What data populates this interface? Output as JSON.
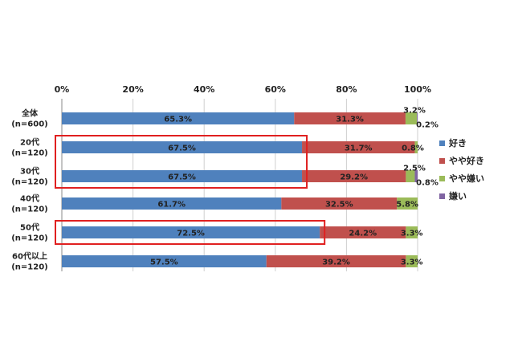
{
  "chart_data": {
    "type": "bar",
    "orientation": "horizontal",
    "stacked": "percent",
    "categories": [
      [
        "全体",
        "(n=600)"
      ],
      [
        "20代",
        "(n=120)"
      ],
      [
        "30代",
        "(n=120)"
      ],
      [
        "40代",
        "(n=120)"
      ],
      [
        "50代",
        "(n=120)"
      ],
      [
        "60代以上",
        "(n=120)"
      ]
    ],
    "series": [
      {
        "name": "好き",
        "color": "#4F81BD",
        "values": [
          65.3,
          67.5,
          67.5,
          61.7,
          72.5,
          57.5
        ],
        "labels": [
          "65.3%",
          "67.5%",
          "67.5%",
          "61.7%",
          "72.5%",
          "57.5%"
        ]
      },
      {
        "name": "やや好き",
        "color": "#C0504D",
        "values": [
          31.3,
          31.7,
          29.2,
          32.5,
          24.2,
          39.2
        ],
        "labels": [
          "31.3%",
          "31.7%",
          "29.2%",
          "32.5%",
          "24.2%",
          "39.2%"
        ]
      },
      {
        "name": "やや嫌い",
        "color": "#9BBB59",
        "values": [
          3.2,
          0.8,
          2.5,
          5.8,
          3.3,
          3.3
        ],
        "labels": [
          "3.2%",
          "0.8%",
          "2.5%",
          "5.8%",
          "3.3%",
          "3.3%"
        ]
      },
      {
        "name": "嫌い",
        "color": "#8064A2",
        "values": [
          0.2,
          0.0,
          0.8,
          0.0,
          0.0,
          0.0
        ],
        "labels": [
          "0.2%",
          "",
          "0.8%",
          "",
          "",
          ""
        ]
      }
    ],
    "x_ticks": [
      "0%",
      "20%",
      "40%",
      "60%",
      "80%",
      "100%"
    ],
    "xlim": [
      0,
      100
    ],
    "grid": true,
    "legend_position": "right",
    "highlighted_categories": [
      1,
      2,
      4
    ],
    "highlight_color": "#E02020"
  }
}
